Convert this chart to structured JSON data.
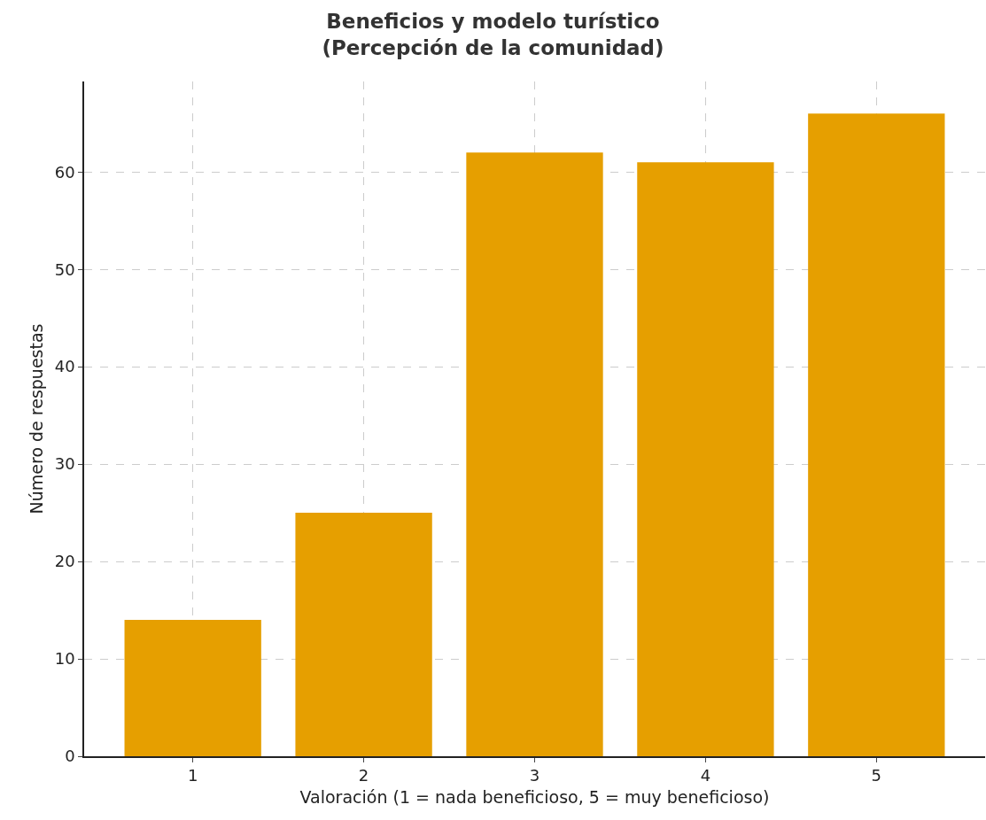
{
  "chart_data": {
    "type": "bar",
    "title": "Beneficios y modelo turístico\n(Percepción de la comunidad)",
    "xlabel": "Valoración (1 = nada beneficioso, 5 = muy beneficioso)",
    "ylabel": "Número de respuestas",
    "categories": [
      "1",
      "2",
      "3",
      "4",
      "5"
    ],
    "values": [
      14,
      25,
      62,
      61,
      66
    ],
    "color": "#e69f00",
    "ylim": [
      0,
      69.3
    ],
    "yticks": [
      0,
      10,
      20,
      30,
      40,
      50,
      60
    ],
    "grid": true
  }
}
